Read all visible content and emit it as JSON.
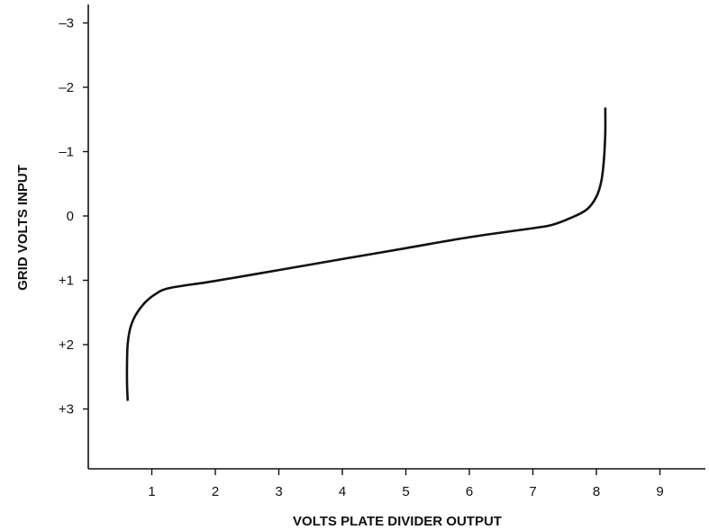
{
  "chart_data": {
    "type": "line",
    "title": "",
    "xlabel": "VOLTS PLATE DIVIDER OUTPUT",
    "ylabel": "GRID VOLTS INPUT",
    "xlim": [
      0,
      10
    ],
    "ylim": [
      4,
      -3.8
    ],
    "y_axis_inverted": true,
    "grid": false,
    "legend": "none",
    "x_ticks": [
      1,
      2,
      3,
      4,
      5,
      6,
      7,
      8,
      9
    ],
    "x_tick_labels": [
      "1",
      "2",
      "3",
      "4",
      "5",
      "6",
      "7",
      "8",
      "9"
    ],
    "y_ticks": [
      -3,
      -2,
      -1,
      0,
      1,
      2,
      3
    ],
    "y_tick_labels": [
      "–3",
      "–2",
      "–1",
      "0",
      "+1",
      "+2",
      "+3"
    ],
    "series": [
      {
        "color": "#111111",
        "points": [
          [
            0.62,
            2.86
          ],
          [
            0.61,
            2.6
          ],
          [
            0.61,
            2.3
          ],
          [
            0.62,
            2.0
          ],
          [
            0.66,
            1.75
          ],
          [
            0.74,
            1.55
          ],
          [
            0.88,
            1.36
          ],
          [
            1.05,
            1.22
          ],
          [
            1.28,
            1.12
          ],
          [
            2.0,
            1.01
          ],
          [
            3.0,
            0.84
          ],
          [
            4.0,
            0.67
          ],
          [
            5.0,
            0.5
          ],
          [
            6.0,
            0.33
          ],
          [
            7.0,
            0.19
          ],
          [
            7.3,
            0.14
          ],
          [
            7.6,
            0.03
          ],
          [
            7.85,
            -0.1
          ],
          [
            8.0,
            -0.3
          ],
          [
            8.08,
            -0.55
          ],
          [
            8.12,
            -0.9
          ],
          [
            8.14,
            -1.3
          ],
          [
            8.14,
            -1.67
          ]
        ]
      }
    ]
  }
}
